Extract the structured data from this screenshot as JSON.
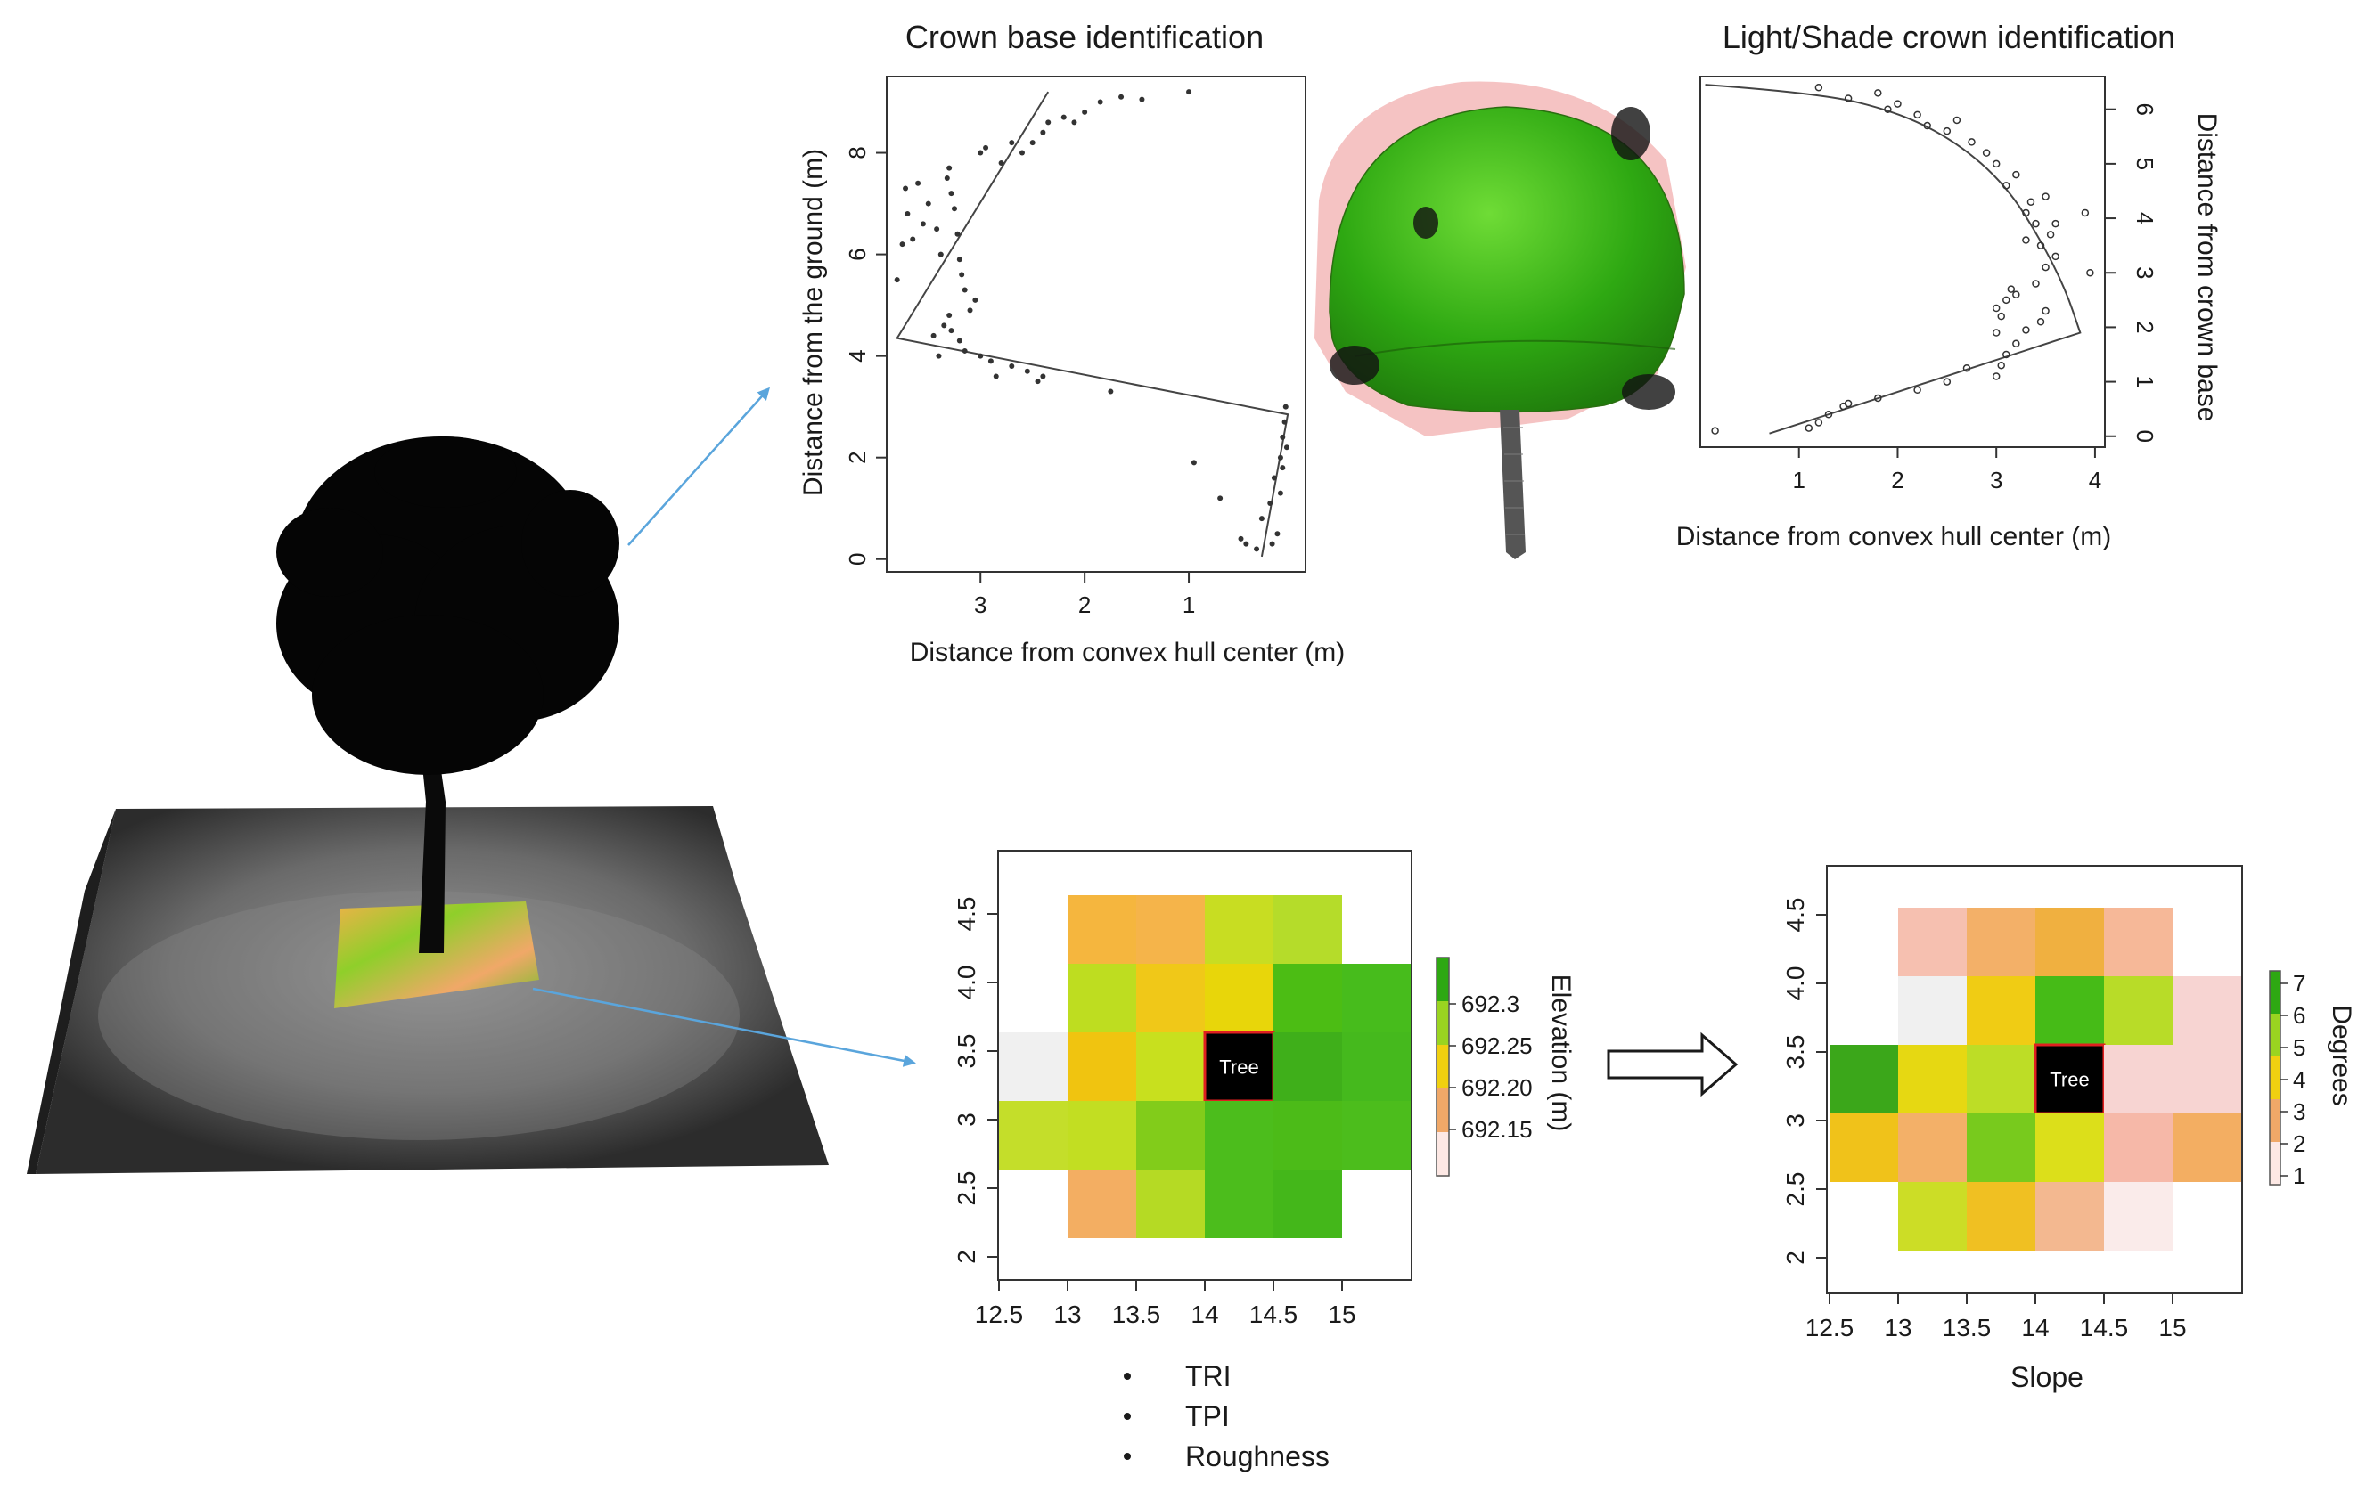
{
  "panels": {
    "crown_base": {
      "title": "Crown base identification",
      "chart_data": {
        "type": "scatter",
        "xlabel": "Distance from convex hull center (m)",
        "ylabel": "Distance from the ground (m)",
        "xlim": [
          3.9,
          -0.12
        ],
        "ylim": [
          -0.25,
          9.5
        ],
        "xticks": [
          3,
          2,
          1
        ],
        "yticks": [
          0,
          2,
          4,
          6,
          8
        ],
        "points": [
          [
            3.8,
            5.5
          ],
          [
            3.75,
            6.2
          ],
          [
            3.7,
            6.8
          ],
          [
            3.72,
            7.3
          ],
          [
            3.6,
            7.4
          ],
          [
            3.65,
            6.3
          ],
          [
            3.55,
            6.6
          ],
          [
            3.5,
            7.0
          ],
          [
            3.42,
            6.5
          ],
          [
            3.38,
            6.0
          ],
          [
            3.3,
            7.7
          ],
          [
            3.32,
            7.5
          ],
          [
            3.28,
            7.2
          ],
          [
            3.25,
            6.9
          ],
          [
            3.22,
            6.4
          ],
          [
            3.2,
            5.9
          ],
          [
            3.18,
            5.6
          ],
          [
            3.15,
            5.3
          ],
          [
            3.1,
            4.9
          ],
          [
            3.05,
            5.1
          ],
          [
            3.3,
            4.8
          ],
          [
            3.35,
            4.6
          ],
          [
            3.28,
            4.5
          ],
          [
            3.2,
            4.3
          ],
          [
            3.15,
            4.1
          ],
          [
            3.45,
            4.4
          ],
          [
            3.4,
            4.0
          ],
          [
            3.0,
            4.0
          ],
          [
            2.9,
            3.9
          ],
          [
            2.85,
            3.6
          ],
          [
            2.7,
            3.8
          ],
          [
            2.55,
            3.7
          ],
          [
            2.45,
            3.5
          ],
          [
            2.4,
            3.6
          ],
          [
            3.0,
            8.0
          ],
          [
            2.95,
            8.1
          ],
          [
            2.8,
            7.8
          ],
          [
            2.7,
            8.2
          ],
          [
            2.6,
            8.0
          ],
          [
            2.5,
            8.2
          ],
          [
            2.4,
            8.4
          ],
          [
            2.35,
            8.6
          ],
          [
            2.2,
            8.7
          ],
          [
            2.1,
            8.6
          ],
          [
            2.0,
            8.8
          ],
          [
            1.85,
            9.0
          ],
          [
            1.65,
            9.1
          ],
          [
            1.45,
            9.05
          ],
          [
            1.0,
            9.2
          ],
          [
            1.75,
            3.3
          ],
          [
            0.95,
            1.9
          ],
          [
            0.7,
            1.2
          ],
          [
            0.5,
            0.4
          ],
          [
            0.45,
            0.3
          ],
          [
            0.35,
            0.2
          ],
          [
            0.3,
            0.8
          ],
          [
            0.22,
            1.1
          ],
          [
            0.18,
            1.6
          ],
          [
            0.12,
            2.0
          ],
          [
            0.1,
            2.4
          ],
          [
            0.08,
            2.7
          ],
          [
            0.07,
            3.0
          ],
          [
            0.15,
            0.5
          ],
          [
            0.2,
            0.3
          ],
          [
            0.12,
            1.3
          ],
          [
            0.1,
            1.8
          ],
          [
            0.06,
            2.2
          ]
        ],
        "fit_line": [
          [
            2.35,
            9.2
          ],
          [
            3.8,
            4.35
          ],
          [
            0.05,
            2.85
          ],
          [
            0.3,
            0.05
          ]
        ]
      }
    },
    "light_shade": {
      "title": "Light/Shade crown identification",
      "chart_data": {
        "type": "scatter",
        "xlabel": "Distance from convex hull center (m)",
        "ylabel": "Distance from crown base",
        "xlim": [
          0.0,
          4.1
        ],
        "ylim": [
          -0.2,
          6.6
        ],
        "xticks": [
          1,
          2,
          3,
          4
        ],
        "yticks": [
          0,
          1,
          2,
          3,
          4,
          5,
          6
        ],
        "points": [
          [
            0.15,
            0.1
          ],
          [
            1.1,
            0.15
          ],
          [
            1.2,
            0.25
          ],
          [
            1.3,
            0.4
          ],
          [
            1.45,
            0.55
          ],
          [
            1.5,
            0.6
          ],
          [
            1.8,
            0.7
          ],
          [
            2.2,
            0.85
          ],
          [
            2.5,
            1.0
          ],
          [
            2.7,
            1.25
          ],
          [
            3.0,
            1.1
          ],
          [
            3.05,
            1.3
          ],
          [
            3.1,
            1.5
          ],
          [
            3.2,
            1.7
          ],
          [
            3.3,
            1.95
          ],
          [
            3.45,
            2.1
          ],
          [
            3.5,
            2.3
          ],
          [
            3.0,
            1.9
          ],
          [
            3.05,
            2.2
          ],
          [
            3.1,
            2.5
          ],
          [
            3.15,
            2.7
          ],
          [
            3.2,
            2.6
          ],
          [
            3.0,
            2.35
          ],
          [
            3.4,
            2.8
          ],
          [
            3.5,
            3.1
          ],
          [
            3.6,
            3.3
          ],
          [
            3.55,
            3.7
          ],
          [
            3.4,
            3.9
          ],
          [
            3.3,
            3.6
          ],
          [
            3.35,
            4.3
          ],
          [
            3.5,
            4.4
          ],
          [
            3.6,
            3.9
          ],
          [
            3.9,
            4.1
          ],
          [
            3.95,
            3.0
          ],
          [
            3.2,
            4.8
          ],
          [
            3.0,
            5.0
          ],
          [
            2.9,
            5.2
          ],
          [
            2.75,
            5.4
          ],
          [
            2.5,
            5.6
          ],
          [
            2.3,
            5.7
          ],
          [
            2.2,
            5.9
          ],
          [
            2.0,
            6.1
          ],
          [
            1.8,
            6.3
          ],
          [
            1.5,
            6.2
          ],
          [
            1.2,
            6.4
          ],
          [
            1.9,
            6.0
          ],
          [
            2.6,
            5.8
          ],
          [
            3.1,
            4.6
          ],
          [
            3.3,
            4.1
          ],
          [
            3.45,
            3.5
          ]
        ],
        "fit_curve": [
          [
            0.05,
            6.45
          ],
          [
            1.2,
            6.3
          ],
          [
            2.0,
            5.95
          ],
          [
            2.6,
            5.4
          ],
          [
            3.1,
            4.6
          ],
          [
            3.45,
            3.6
          ],
          [
            3.7,
            2.7
          ],
          [
            3.85,
            1.9
          ],
          [
            0.7,
            0.05
          ]
        ]
      }
    },
    "elevation_map": {
      "chart_data": {
        "type": "heatmap",
        "xticks": [
          "12.5",
          "13",
          "13.5",
          "14",
          "14.5",
          "15"
        ],
        "yticks": [
          "2",
          "2.5",
          "3",
          "3.5",
          "4.0",
          "4.5"
        ],
        "rows_top_to_bottom": [
          [
            "#ffffff",
            "#f5b63e",
            "#f5b44a",
            "#c8dd22",
            "#b5dc2a",
            "#ffffff"
          ],
          [
            "#ffffff",
            "#bedd20",
            "#f0c818",
            "#e8d60a",
            "#4cbd14",
            "#47bc1c"
          ],
          [
            "#f0f0f0",
            "#f0c410",
            "#c8e01e",
            "#000000",
            "#3faf1a",
            "#45b91d"
          ],
          [
            "#c4de2a",
            "#c2de22",
            "#82cc1a",
            "#4cbd1c",
            "#4cbb18",
            "#4cbd1c"
          ],
          [
            "#ffffff",
            "#f3ae62",
            "#b5da24",
            "#4cbd1c",
            "#44b71a",
            "#ffffff"
          ]
        ],
        "tree_label": "Tree",
        "legend_ticks": [
          "692.3",
          "692.25",
          "692.20",
          "692.15"
        ],
        "legend_title": "Elevation (m)",
        "legend_colors": [
          "#2ea812",
          "#9ad420",
          "#f0d010",
          "#f0a868",
          "#fde8e4"
        ]
      },
      "bullets": [
        "TRI",
        "TPI",
        "Roughness"
      ]
    },
    "slope_map": {
      "chart_data": {
        "type": "heatmap",
        "xticks": [
          "12.5",
          "13",
          "13.5",
          "14",
          "14.5",
          "15"
        ],
        "yticks": [
          "2",
          "2.5",
          "3",
          "3.5",
          "4.0",
          "4.5"
        ],
        "rows_top_to_bottom": [
          [
            "#ffffff",
            "#f6c0b0",
            "#f3b068",
            "#f0b040",
            "#f6b898",
            "#ffffff"
          ],
          [
            "#ffffff",
            "#f0f0f0",
            "#f0cc14",
            "#46bb17",
            "#b8dc28",
            "#f7d4d2"
          ],
          [
            "#3ba71a",
            "#e6d812",
            "#bddd26",
            "#000000",
            "#f7d4d2",
            "#f7d4d2"
          ],
          [
            "#f0c21a",
            "#f3b068",
            "#78ca1d",
            "#dcdf1a",
            "#f6b8a8",
            "#f3ae62"
          ],
          [
            "#ffffff",
            "#ccdd26",
            "#f0c022",
            "#f3b890",
            "#faebea",
            "#ffffff"
          ]
        ],
        "tree_label": "Tree",
        "xlabel": "Slope",
        "legend_ticks": [
          "7",
          "6",
          "5",
          "4",
          "3",
          "2",
          "1"
        ],
        "legend_title": "Degrees",
        "legend_colors": [
          "#2ea812",
          "#9ad420",
          "#f0d010",
          "#f0a868",
          "#fde8e4"
        ]
      }
    }
  },
  "colors": {
    "arrow_blue": "#5aa5dc",
    "points": "#333333",
    "fit": "#444444",
    "tree_box_border": "#e02020"
  }
}
